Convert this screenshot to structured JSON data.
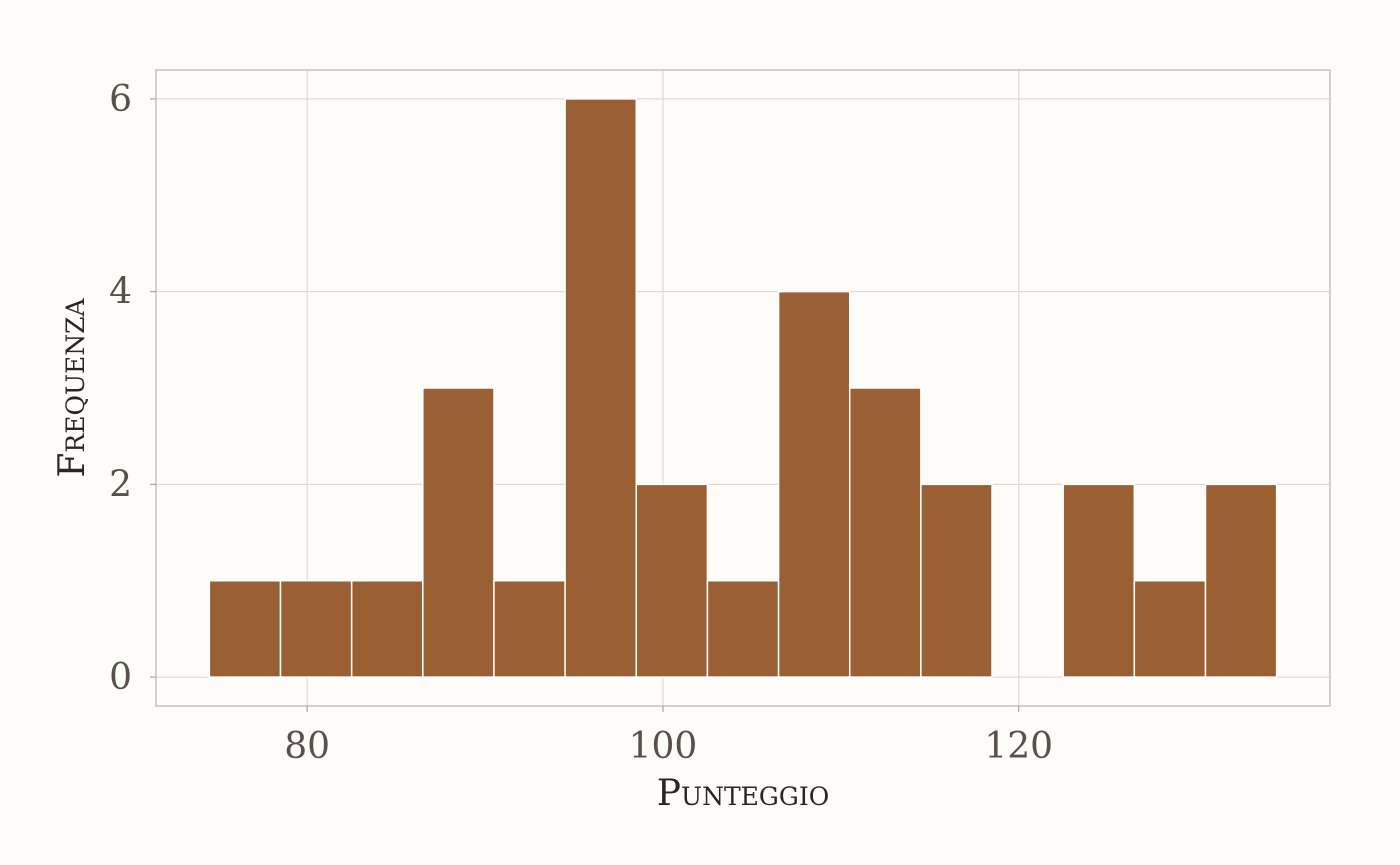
{
  "chart_data": {
    "type": "bar",
    "subtype": "histogram",
    "title": "",
    "xlabel": "Punteggio",
    "ylabel": "Frequenza",
    "bin_width": 4,
    "bins": [
      {
        "x0": 74.5,
        "x1": 78.5,
        "count": 1
      },
      {
        "x0": 78.5,
        "x1": 82.5,
        "count": 1
      },
      {
        "x0": 82.5,
        "x1": 86.5,
        "count": 1
      },
      {
        "x0": 86.5,
        "x1": 90.5,
        "count": 3
      },
      {
        "x0": 90.5,
        "x1": 94.5,
        "count": 1
      },
      {
        "x0": 94.5,
        "x1": 98.5,
        "count": 6
      },
      {
        "x0": 98.5,
        "x1": 102.5,
        "count": 2
      },
      {
        "x0": 102.5,
        "x1": 106.5,
        "count": 1
      },
      {
        "x0": 106.5,
        "x1": 110.5,
        "count": 4
      },
      {
        "x0": 110.5,
        "x1": 114.5,
        "count": 3
      },
      {
        "x0": 114.5,
        "x1": 118.5,
        "count": 2
      },
      {
        "x0": 118.5,
        "x1": 122.5,
        "count": 0
      },
      {
        "x0": 122.5,
        "x1": 126.5,
        "count": 2
      },
      {
        "x0": 126.5,
        "x1": 130.5,
        "count": 1
      },
      {
        "x0": 130.5,
        "x1": 134.5,
        "count": 2
      }
    ],
    "xlim": [
      71.5,
      137.5
    ],
    "ylim": [
      -0.3,
      6.3
    ],
    "x_ticks": [
      80,
      100,
      120
    ],
    "x_tick_labels": [
      "80",
      "100",
      "120"
    ],
    "y_ticks": [
      0,
      2,
      4,
      6
    ],
    "y_tick_labels": [
      "0",
      "2",
      "4",
      "6"
    ],
    "grid": true,
    "legend": "none",
    "bar_color": "#9a5f33",
    "bar_edge_color": "#ffffff",
    "grid_color": "#dedbd6",
    "panel_border_color": "#c4c1bd",
    "background_color": "#fdfcf9"
  }
}
